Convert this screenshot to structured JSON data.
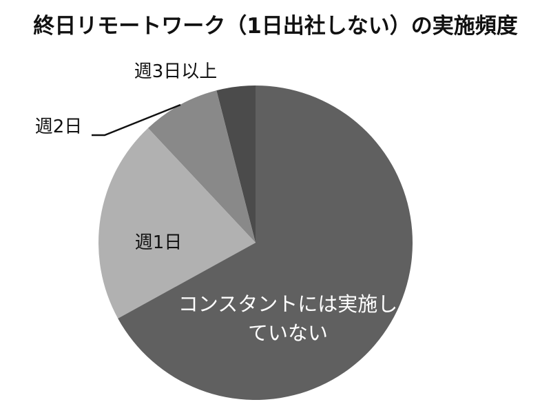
{
  "chart_data": {
    "type": "pie",
    "title": "終日リモートワーク（1日出社しない）の実施頻度",
    "categories": [
      "コンスタントには実施していない",
      "週1日",
      "週2日",
      "週3日以上"
    ],
    "values": [
      67,
      21,
      8,
      4
    ],
    "colors": [
      "#606060",
      "#b1b1b1",
      "#898989",
      "#4b4b4b"
    ]
  }
}
